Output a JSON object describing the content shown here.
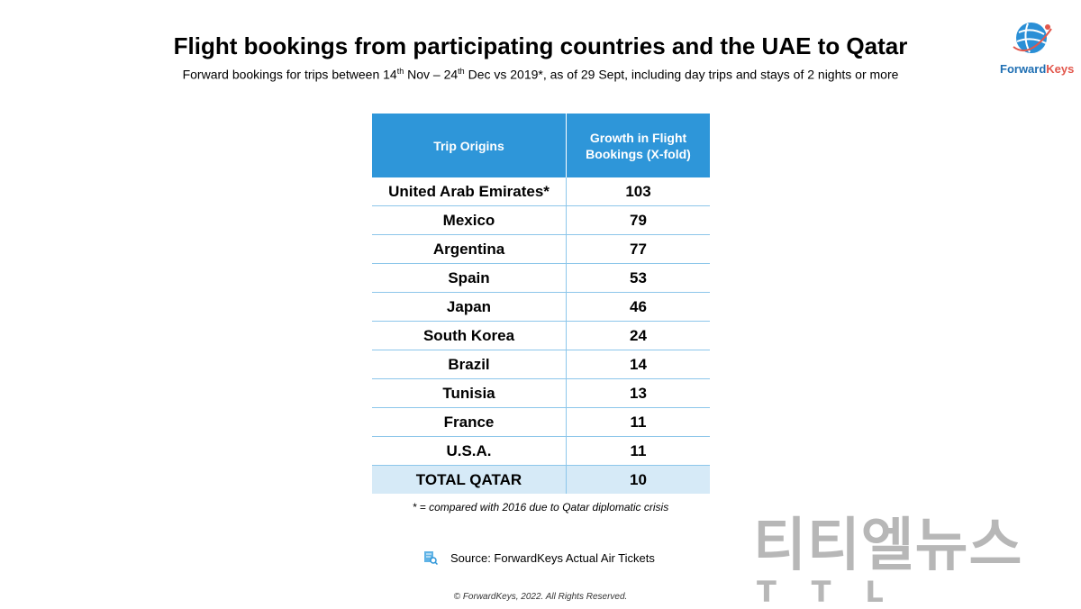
{
  "header": {
    "title": "Flight bookings from participating countries and the UAE to Qatar",
    "subtitle_parts": {
      "a": "Forward bookings for trips between 14",
      "sup1": "th",
      "b": " Nov – 24",
      "sup2": "th",
      "c": " Dec vs 2019*, as of 29 Sept, including day trips and stays of 2 nights or more"
    }
  },
  "logo": {
    "text_a": "Forward",
    "text_b": "Keys"
  },
  "table": {
    "headers": [
      "Trip Origins",
      "Growth in Flight Bookings (X-fold)"
    ],
    "rows": [
      {
        "origin": "United Arab Emirates*",
        "growth": "103"
      },
      {
        "origin": "Mexico",
        "growth": "79"
      },
      {
        "origin": "Argentina",
        "growth": "77"
      },
      {
        "origin": "Spain",
        "growth": "53"
      },
      {
        "origin": "Japan",
        "growth": "46"
      },
      {
        "origin": "South Korea",
        "growth": "24"
      },
      {
        "origin": "Brazil",
        "growth": "14"
      },
      {
        "origin": "Tunisia",
        "growth": "13"
      },
      {
        "origin": "France",
        "growth": "11"
      },
      {
        "origin": "U.S.A.",
        "growth": "11"
      }
    ],
    "total": {
      "origin": "TOTAL QATAR",
      "growth": "10"
    }
  },
  "footnote": "* = compared with 2016 due to Qatar diplomatic crisis",
  "source": "Source: ForwardKeys Actual Air Tickets",
  "copyright": "© ForwardKeys, 2022. All Rights Reserved.",
  "watermark": {
    "main": "티티엘뉴스",
    "sub": "TTL"
  },
  "colors": {
    "header_blue": "#2e96d9",
    "total_row": "#d6eaf7",
    "grid_line": "#8cc6ea"
  }
}
